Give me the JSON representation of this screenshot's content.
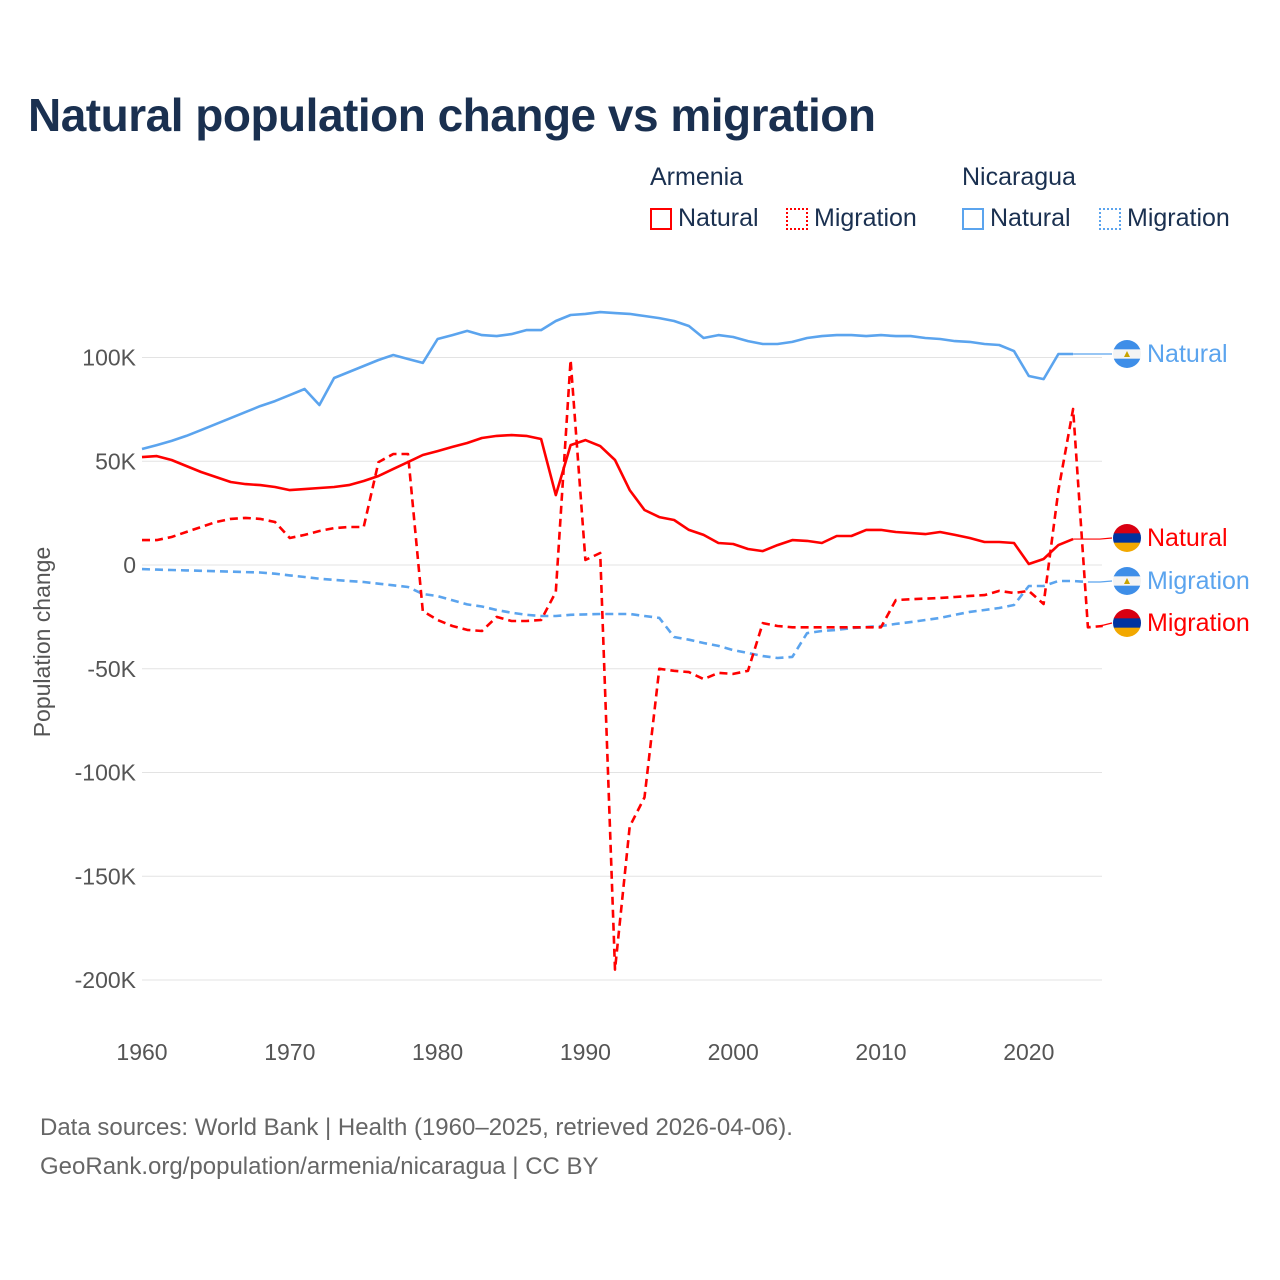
{
  "title": "Natural population change vs migration",
  "legend": {
    "groups": [
      {
        "name": "Armenia",
        "items": [
          "Natural",
          "Migration"
        ],
        "color": "#ff0000"
      },
      {
        "name": "Nicaragua",
        "items": [
          "Natural",
          "Migration"
        ],
        "color": "#5ba4ee"
      }
    ]
  },
  "footer": {
    "line1": "Data sources: World Bank | Health (1960–2025, retrieved 2026-04-06).",
    "line2": "GeoRank.org/population/armenia/nicaragua | CC BY"
  },
  "chart_data": {
    "type": "line",
    "title": "Natural population change vs migration",
    "xlabel": "",
    "ylabel": "Population change",
    "xlim": [
      1960,
      2025
    ],
    "ylim": [
      -200000,
      120000
    ],
    "xticks": [
      1960,
      1970,
      1980,
      1990,
      2000,
      2010,
      2020
    ],
    "xtick_labels": [
      "1960",
      "1970",
      "1980",
      "1990",
      "2000",
      "2010",
      "2020"
    ],
    "yticks": [
      100000,
      50000,
      0,
      -50000,
      -100000,
      -150000,
      -200000
    ],
    "ytick_labels": [
      "100K",
      "50K",
      "0",
      "-50K",
      "-100K",
      "-150K",
      "-200K"
    ],
    "grid": true,
    "legend_position": "top-right",
    "start_year": 1960,
    "series": [
      {
        "name": "Nicaragua Natural",
        "label": "Natural",
        "country": "Nicaragua",
        "color": "#5ba4ee",
        "dashed": false,
        "values": [
          55.9,
          57.8,
          59.8,
          62.2,
          65.0,
          67.9,
          70.8,
          73.7,
          76.6,
          79.0,
          81.9,
          84.8,
          77.1,
          90.1,
          93.0,
          95.9,
          98.8,
          101.2,
          99.3,
          97.4,
          108.9,
          110.8,
          112.8,
          110.8,
          110.3,
          111.3,
          113.2,
          113.2,
          117.6,
          120.5,
          121.0,
          121.9,
          121.4,
          121.0,
          120.0,
          119.0,
          117.6,
          115.2,
          109.4,
          110.8,
          109.9,
          107.9,
          106.5,
          106.5,
          107.5,
          109.4,
          110.3,
          110.8,
          110.8,
          110.3,
          110.8,
          110.3,
          110.3,
          109.4,
          108.9,
          107.9,
          107.5,
          106.5,
          106.0,
          103.1,
          91.1,
          89.6,
          101.7,
          101.7
        ]
      },
      {
        "name": "Armenia Natural",
        "label": "Natural",
        "country": "Armenia",
        "color": "#ff0000",
        "dashed": false,
        "values": [
          52.0,
          52.5,
          50.6,
          47.7,
          44.8,
          42.4,
          40.0,
          39.0,
          38.5,
          37.6,
          36.1,
          36.6,
          37.1,
          37.6,
          38.5,
          40.5,
          42.9,
          46.3,
          49.6,
          53.0,
          54.9,
          56.9,
          58.8,
          61.2,
          62.2,
          62.6,
          62.2,
          60.7,
          33.7,
          57.8,
          60.2,
          57.3,
          50.6,
          36.1,
          26.5,
          23.1,
          21.7,
          16.9,
          14.5,
          10.6,
          10.1,
          7.7,
          6.7,
          9.6,
          12.0,
          11.6,
          10.6,
          14.0,
          14.0,
          16.9,
          16.9,
          15.9,
          15.4,
          14.9,
          15.9,
          14.5,
          13.0,
          11.1,
          11.1,
          10.6,
          0.5,
          2.9,
          9.6,
          12.5
        ]
      },
      {
        "name": "Nicaragua Migration",
        "label": "Migration",
        "country": "Nicaragua",
        "color": "#5ba4ee",
        "dashed": true,
        "values": [
          -2.0,
          -2.2,
          -2.4,
          -2.6,
          -2.8,
          -3.0,
          -3.2,
          -3.4,
          -3.6,
          -4.2,
          -5.0,
          -5.8,
          -6.6,
          -7.2,
          -7.7,
          -8.2,
          -9.0,
          -9.8,
          -10.6,
          -14.0,
          -15.0,
          -17.0,
          -19.0,
          -20.0,
          -21.7,
          -23.0,
          -24.0,
          -24.6,
          -24.6,
          -24.0,
          -23.8,
          -23.6,
          -23.6,
          -23.6,
          -24.6,
          -25.5,
          -34.7,
          -36.0,
          -37.6,
          -39.0,
          -41.0,
          -42.4,
          -43.9,
          -44.8,
          -44.3,
          -32.8,
          -31.8,
          -31.3,
          -30.4,
          -29.9,
          -29.4,
          -28.4,
          -27.5,
          -26.5,
          -25.5,
          -24.0,
          -22.6,
          -21.7,
          -20.7,
          -19.3,
          -10.1,
          -10.1,
          -7.7,
          -7.7,
          -8.2
        ]
      },
      {
        "name": "Armenia Migration",
        "label": "Migration",
        "country": "Armenia",
        "color": "#ff0000",
        "dashed": true,
        "values": [
          12.0,
          12.0,
          13.5,
          15.9,
          18.3,
          20.7,
          22.2,
          22.7,
          22.2,
          20.7,
          13.0,
          14.5,
          16.4,
          17.8,
          18.3,
          18.3,
          49.6,
          53.5,
          53.5,
          -22.2,
          -26.5,
          -29.4,
          -31.3,
          -31.8,
          -25.0,
          -27.0,
          -27.0,
          -26.5,
          -13.0,
          98.8,
          2.4,
          5.8,
          -195.0,
          -126.0,
          -112.0,
          -50.0,
          -51.0,
          -51.6,
          -55.0,
          -52.0,
          -52.5,
          -51.0,
          -28.0,
          -29.4,
          -30.0,
          -30.0,
          -30.0,
          -30.0,
          -30.0,
          -30.0,
          -30.0,
          -16.9,
          -16.5,
          -16.2,
          -15.9,
          -15.4,
          -14.9,
          -14.5,
          -12.5,
          -13.5,
          -12.5,
          -18.8,
          36.0,
          75.2,
          -30.0,
          -29.4
        ]
      }
    ],
    "value_unit": "thousands",
    "end_labels": [
      {
        "text": "Natural",
        "series": "Nicaragua Natural"
      },
      {
        "text": "Natural",
        "series": "Armenia Natural"
      },
      {
        "text": "Migration",
        "series": "Nicaragua Migration"
      },
      {
        "text": "Migration",
        "series": "Armenia Migration"
      }
    ]
  }
}
